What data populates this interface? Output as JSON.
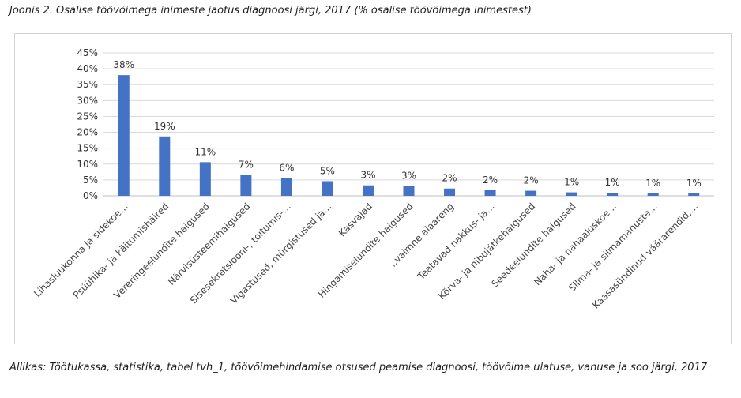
{
  "title": "Joonis 2. Osalise töövõimega inimeste jaotus diagnoosi järgi, 2017 (% osalise töövõimega inimestest)",
  "source": "Allikas: Töötukassa, statistika, tabel tvh_1, töövõimehindamise otsused peamise diagnoosi, töövõime ulatuse, vanuse ja soo järgi, 2017",
  "colors": {
    "bar": "#4472C4",
    "grid": "#d9d9d9",
    "axis": "#bfbfbf"
  },
  "chart_data": {
    "type": "bar",
    "title": "",
    "xlabel": "",
    "ylabel": "",
    "ylim": [
      0,
      45
    ],
    "yticks": [
      0,
      5,
      10,
      15,
      20,
      25,
      30,
      35,
      40,
      45
    ],
    "ytick_labels": [
      "0%",
      "5%",
      "10%",
      "15%",
      "20%",
      "25%",
      "30%",
      "35%",
      "40%",
      "45%"
    ],
    "grid": true,
    "legend": "none",
    "categories": [
      "Lihasluukonna ja sidekoe…",
      "Psüühika- ja käitumishäired",
      "Vereringeelundite haigused",
      "Närvisüsteemihaigused",
      "Sisesekretsiooni-, toitumis-…",
      "Vigastused, mürgistused ja…",
      "Kasvajad",
      "Hingamiselundite haigused",
      "..vaimne alaareng",
      "Teatavad nakkus- ja…",
      "Kõrva- ja nibujätkehaigused",
      "Seedeelundite haigused",
      "Naha- ja nahaaluskoe…",
      "Silma- ja silmamanuste…",
      "Kaasasündinud väärarendid,…"
    ],
    "values": [
      38,
      18.7,
      10.6,
      6.6,
      5.6,
      4.6,
      3.3,
      3.1,
      2.3,
      1.8,
      1.6,
      1.1,
      1.0,
      0.8,
      0.8
    ],
    "data_labels": [
      "38%",
      "19%",
      "11%",
      "7%",
      "6%",
      "5%",
      "3%",
      "3%",
      "2%",
      "2%",
      "2%",
      "1%",
      "1%",
      "1%",
      "1%"
    ]
  }
}
